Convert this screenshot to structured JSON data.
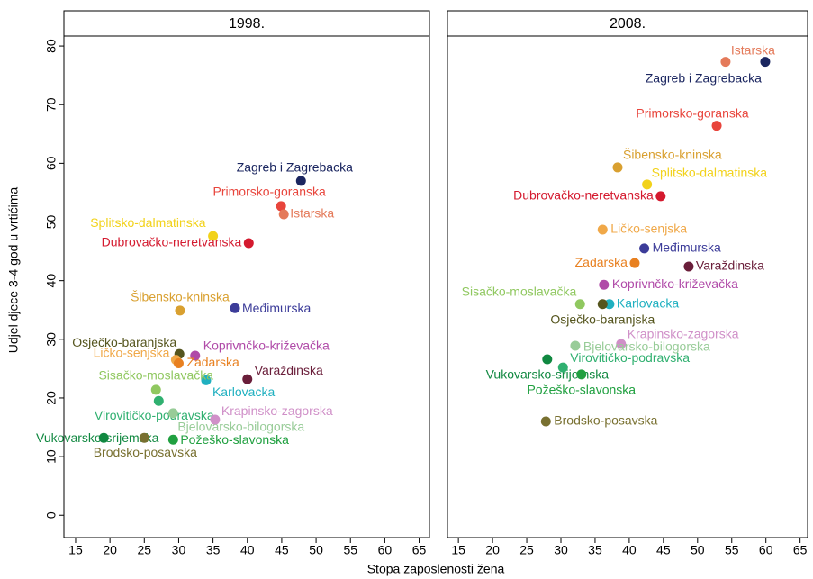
{
  "axes": {
    "x_label": "Stopa zaposlenosti žena",
    "y_label": "Udjel djece 3-4 god u vrtićima"
  },
  "chart_data": [
    {
      "type": "scatter",
      "title": "1998.",
      "labels": [
        "Zagreb i Zagrebacka",
        "Primorsko-goranska",
        "Istarska",
        "Splitsko-dalmatinska",
        "Dubrovačko-neretvanska",
        "Šibensko-kninska",
        "Međimurska",
        "Osječko-baranjska",
        "Koprivnčko-križevačka",
        "Ličko-senjska",
        "Zadarska",
        "Varaždinska",
        "Karlovacka",
        "Sisačko-moslavačka",
        "Virovitičko-podravska",
        "Bjelovarsko-bilogorska",
        "Krapinsko-zagorska",
        "Vukovarsko-srijemska",
        "Brodsko-posavska",
        "Požeško-slavonska"
      ],
      "x": [
        47.8,
        44.9,
        45.3,
        35.0,
        40.2,
        30.2,
        38.2,
        30.1,
        32.4,
        29.6,
        30.0,
        40.0,
        34.0,
        26.7,
        27.1,
        29.2,
        35.3,
        19.1,
        25.0,
        29.2
      ],
      "y": [
        57.0,
        52.7,
        51.3,
        47.6,
        46.4,
        34.9,
        35.3,
        27.5,
        27.2,
        26.5,
        25.9,
        23.2,
        23.0,
        21.4,
        19.5,
        17.4,
        16.3,
        13.2,
        13.2,
        12.9
      ],
      "colors": [
        "#1b2660",
        "#e8453c",
        "#e47a5a",
        "#f2d21a",
        "#d4192e",
        "#d9a030",
        "#3c3c99",
        "#55551e",
        "#b04aa8",
        "#f0a848",
        "#e88020",
        "#6a1e3a",
        "#20b0c0",
        "#90c860",
        "#30b070",
        "#98cc98",
        "#d090c8",
        "#108840",
        "#787030",
        "#20a040"
      ],
      "xlim": [
        13.3,
        66.5
      ],
      "ylim": [
        -3.8,
        81.7
      ],
      "xticks": [
        15,
        20,
        25,
        30,
        35,
        40,
        45,
        50,
        55,
        60,
        65
      ],
      "yticks": [
        0,
        10,
        20,
        30,
        40,
        50,
        60,
        70,
        80
      ]
    },
    {
      "type": "scatter",
      "title": "2008.",
      "labels": [
        "Istarska",
        "Zagreb i Zagrebacka",
        "Primorsko-goranska",
        "Šibensko-kninska",
        "Splitsko-dalmatinska",
        "Dubrovačko-neretvanska",
        "Ličko-senjska",
        "Međimurska",
        "Zadarska",
        "Varaždinska",
        "Koprivnčko-križevačka",
        "Sisačko-moslavačka",
        "Karlovacka",
        "Osječko-baranjska",
        "Krapinsko-zagorska",
        "Bjelovarsko-bilogorska",
        "Vukovarsko-srijemska",
        "Virovitičko-podravska",
        "Požeško-slavonska",
        "Brodsko-posavska"
      ],
      "x": [
        54.1,
        59.9,
        52.8,
        38.3,
        42.6,
        44.6,
        36.1,
        42.2,
        40.8,
        48.7,
        36.3,
        32.8,
        37.1,
        36.1,
        38.8,
        32.1,
        28.0,
        30.3,
        33.0,
        27.8
      ],
      "y": [
        77.3,
        77.3,
        66.4,
        59.3,
        56.4,
        54.4,
        48.7,
        45.5,
        43.0,
        42.4,
        39.3,
        36.0,
        36.0,
        36.0,
        29.2,
        28.9,
        26.6,
        25.2,
        24.0,
        16.0
      ],
      "colors": [
        "#e47a5a",
        "#1b2660",
        "#e8453c",
        "#d9a030",
        "#f2d21a",
        "#d4192e",
        "#f0a848",
        "#3c3c99",
        "#e88020",
        "#6a1e3a",
        "#b04aa8",
        "#90c860",
        "#20b0c0",
        "#55551e",
        "#d090c8",
        "#98cc98",
        "#108840",
        "#30b070",
        "#20a040",
        "#787030"
      ],
      "xlim": [
        13.4,
        66.1
      ],
      "ylim": [
        -3.8,
        81.7
      ],
      "xticks": [
        15,
        20,
        25,
        30,
        35,
        40,
        45,
        50,
        55,
        60,
        65
      ]
    }
  ]
}
